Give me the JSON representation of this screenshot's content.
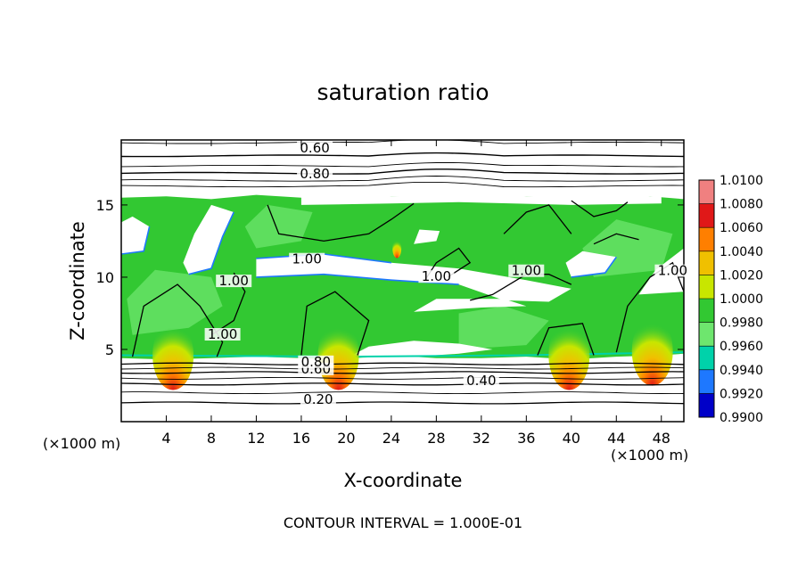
{
  "chart_data": {
    "type": "heatmap",
    "title": "saturation ratio",
    "xlabel": "X-coordinate",
    "ylabel": "Z-coordinate",
    "x_unit": "(×1000 m)",
    "y_unit": "(×1000 m)",
    "xlim": [
      0,
      50
    ],
    "ylim": [
      0,
      19.5
    ],
    "x_ticks": [
      4,
      8,
      12,
      16,
      20,
      24,
      28,
      32,
      36,
      40,
      44,
      48
    ],
    "y_ticks": [
      5,
      10,
      15
    ],
    "footer": "CONTOUR INTERVAL = 1.000E-01",
    "colorbar": {
      "levels": [
        "1.0100",
        "1.0080",
        "1.0060",
        "1.0040",
        "1.0020",
        "1.0000",
        "0.9980",
        "0.9960",
        "0.9940",
        "0.9920",
        "0.9900"
      ],
      "colors": [
        "#f08080",
        "#e01818",
        "#ff7f00",
        "#f0c000",
        "#c8e600",
        "#32c832",
        "#6ee66e",
        "#00d2aa",
        "#1e78ff",
        "#0000c8",
        "#7800a0"
      ]
    },
    "contour_labels": [
      {
        "text": "0.60",
        "x": 17.2,
        "y": 18.7
      },
      {
        "text": "0.80",
        "x": 17.2,
        "y": 16.9
      },
      {
        "text": "1.00",
        "x": 16.5,
        "y": 11.0
      },
      {
        "text": "1.00",
        "x": 9.0,
        "y": 5.8
      },
      {
        "text": "1.00",
        "x": 10.0,
        "y": 9.5
      },
      {
        "text": "1.00",
        "x": 28.0,
        "y": 9.8
      },
      {
        "text": "1.00",
        "x": 36.0,
        "y": 10.2
      },
      {
        "text": "1.00",
        "x": 49.0,
        "y": 10.2
      },
      {
        "text": "0.60",
        "x": 17.3,
        "y": 3.4
      },
      {
        "text": "0.80",
        "x": 17.3,
        "y": 3.9
      },
      {
        "text": "0.40",
        "x": 32.0,
        "y": 2.6
      },
      {
        "text": "0.20",
        "x": 17.5,
        "y": 1.3
      }
    ],
    "warm_peaks": [
      {
        "x": 4.6,
        "z": 4.6,
        "max": 1.008
      },
      {
        "x": 19.3,
        "z": 4.6,
        "max": 1.004
      },
      {
        "x": 39.8,
        "z": 4.6,
        "max": 1.006
      },
      {
        "x": 47.2,
        "z": 4.9,
        "max": 1.004
      },
      {
        "x": 24.5,
        "z": 12.0,
        "max": 1.01
      }
    ]
  }
}
